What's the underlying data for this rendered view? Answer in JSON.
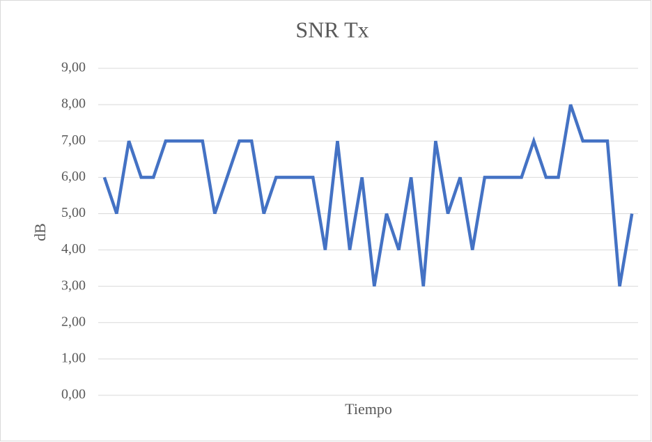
{
  "chart_data": {
    "type": "line",
    "title": "SNR Tx",
    "x_label": "Tiempo",
    "y_label": "dB",
    "categories": [
      null,
      null,
      null,
      null,
      null,
      null,
      null,
      null,
      null,
      null,
      null,
      null,
      null,
      null,
      null,
      null,
      null,
      null,
      null,
      null,
      null,
      null,
      null,
      null,
      null,
      null,
      null,
      null,
      null,
      null,
      null,
      null,
      null,
      null,
      null,
      null,
      null,
      null,
      null,
      null,
      null,
      null,
      null,
      null
    ],
    "series": [
      {
        "name": "SNR Tx",
        "color": "#4472c4",
        "values": [
          6,
          5,
          7,
          6,
          6,
          7,
          7,
          7,
          7,
          5,
          6,
          7,
          7,
          5,
          6,
          6,
          6,
          6,
          4,
          7,
          4,
          6,
          3,
          5,
          4,
          6,
          3,
          7,
          5,
          6,
          4,
          6,
          6,
          6,
          6,
          7,
          6,
          6,
          8,
          7,
          7,
          7,
          3,
          5
        ]
      }
    ],
    "ylim": [
      0,
      9
    ],
    "yticks": [
      {
        "value": 0,
        "label": "0,00"
      },
      {
        "value": 1,
        "label": "1,00"
      },
      {
        "value": 2,
        "label": "2,00"
      },
      {
        "value": 3,
        "label": "3,00"
      },
      {
        "value": 4,
        "label": "4,00"
      },
      {
        "value": 5,
        "label": "5,00"
      },
      {
        "value": 6,
        "label": "6,00"
      },
      {
        "value": 7,
        "label": "7,00"
      },
      {
        "value": 8,
        "label": "8,00"
      },
      {
        "value": 9,
        "label": "9,00"
      }
    ],
    "grid": true
  }
}
